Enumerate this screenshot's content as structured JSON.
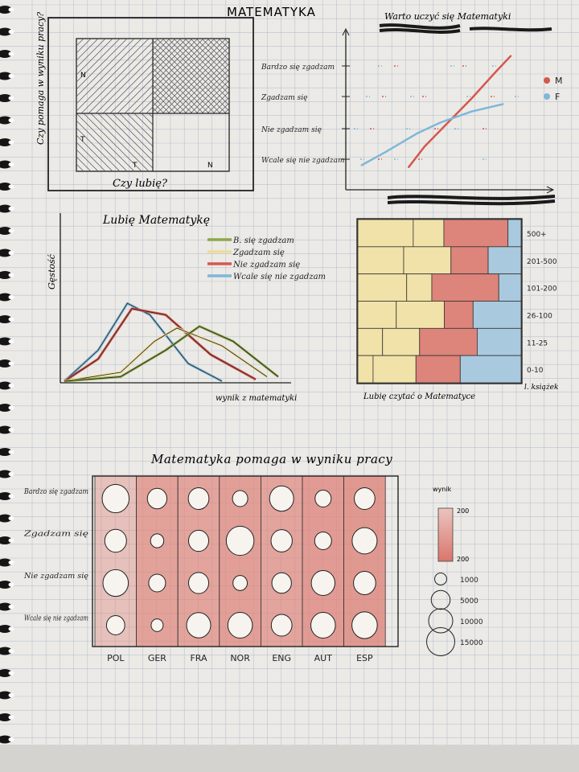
{
  "page": {
    "title": "MATEMATYKA"
  },
  "colors": {
    "paper": "#eceae6",
    "grid": "#b9c2cf",
    "ink": "#222222",
    "red": "#d4584e",
    "blue": "#7fb7d8",
    "yellow": "#eddc9a",
    "olive": "#8fa64a",
    "redfill": "#dd847b",
    "pinkfill": "#e8b9b4"
  },
  "chart_data": [
    {
      "id": "quadrant",
      "type": "heatmap",
      "ylabel": "Czy pomaga w wyniku pracy?",
      "xlabel": "Czy lubię?",
      "x_ticks": [
        "T",
        "N"
      ],
      "y_ticks": [
        "N",
        "T"
      ]
    },
    {
      "id": "worth",
      "type": "line",
      "title": "Warto uczyć się Matematyki",
      "y_categories": [
        "Bardzo się zgadzam",
        "Zgadzam się",
        "Nie zgadzam się",
        "Wcale się nie zgadzam"
      ],
      "series": [
        {
          "name": "M",
          "color": "#d4584e",
          "values": [
            [
              0.35,
              0.05
            ],
            [
              0.45,
              0.6
            ],
            [
              0.6,
              1.25
            ],
            [
              0.75,
              1.9
            ],
            [
              0.9,
              2.6
            ],
            [
              1.0,
              3.05
            ]
          ]
        },
        {
          "name": "F",
          "color": "#7fb7d8",
          "values": [
            [
              0.05,
              0.1
            ],
            [
              0.2,
              0.45
            ],
            [
              0.4,
              0.95
            ],
            [
              0.55,
              1.25
            ],
            [
              0.75,
              1.55
            ],
            [
              0.95,
              1.75
            ]
          ]
        }
      ]
    },
    {
      "id": "density",
      "type": "line",
      "title": "Lubię Matematykę",
      "ylabel": "Gęstość",
      "xlabel": "wynik z matematyki",
      "series": [
        {
          "name": "B. się zgadzam",
          "color": "#8fa64a",
          "values": [
            [
              0.0,
              0.0
            ],
            [
              0.25,
              0.05
            ],
            [
              0.45,
              0.35
            ],
            [
              0.6,
              0.62
            ],
            [
              0.75,
              0.45
            ],
            [
              0.95,
              0.05
            ]
          ]
        },
        {
          "name": "Zgadzam się",
          "color": "#eddc9a",
          "values": [
            [
              0.0,
              0.0
            ],
            [
              0.25,
              0.1
            ],
            [
              0.4,
              0.45
            ],
            [
              0.5,
              0.6
            ],
            [
              0.7,
              0.4
            ],
            [
              0.9,
              0.05
            ]
          ]
        },
        {
          "name": "Nie zgadzam się",
          "color": "#d4584e",
          "values": [
            [
              0.0,
              0.0
            ],
            [
              0.15,
              0.25
            ],
            [
              0.3,
              0.82
            ],
            [
              0.45,
              0.75
            ],
            [
              0.65,
              0.3
            ],
            [
              0.85,
              0.02
            ]
          ]
        },
        {
          "name": "Wcale się nie zgadzam",
          "color": "#7fb7d8",
          "values": [
            [
              0.0,
              0.0
            ],
            [
              0.15,
              0.35
            ],
            [
              0.28,
              0.88
            ],
            [
              0.38,
              0.75
            ],
            [
              0.55,
              0.2
            ],
            [
              0.7,
              0.0
            ]
          ]
        }
      ]
    },
    {
      "id": "books",
      "type": "bar",
      "title": "Lubię czytać o Matematyce",
      "ylabel_right": "l. książek",
      "categories": [
        "500+",
        "201-500",
        "101-200",
        "26-100",
        "11-25",
        "0-10"
      ],
      "segment_colors": [
        "#f1e2a9",
        "#f1e2a9",
        "#dd847b",
        "#a9c9df"
      ],
      "rows": [
        [
          0.38,
          0.21,
          0.44,
          0.09
        ],
        [
          0.32,
          0.33,
          0.26,
          0.23
        ],
        [
          0.35,
          0.18,
          0.48,
          0.16
        ],
        [
          0.28,
          0.35,
          0.21,
          0.35
        ],
        [
          0.18,
          0.27,
          0.42,
          0.32
        ],
        [
          0.11,
          0.31,
          0.32,
          0.44
        ]
      ]
    },
    {
      "id": "bubble",
      "type": "heatmap",
      "title": "Matematyka pomaga w wyniku pracy",
      "x_categories": [
        "POL",
        "GER",
        "FRA",
        "NOR",
        "ENG",
        "AUT",
        "ESP"
      ],
      "y_categories": [
        "Bardzo się zgadzam",
        "Zgadzam się",
        "Nie zgadzam się",
        "Wcale się nie zgadzam"
      ],
      "column_shade": [
        0.2,
        0.75,
        0.7,
        0.8,
        0.7,
        0.85,
        0.9
      ],
      "sizes": [
        [
          13500,
          5500,
          6500,
          2500,
          10000,
          3000,
          6500
        ],
        [
          7500,
          1500,
          6000,
          14500,
          7000,
          3500,
          11000
        ],
        [
          11500,
          3500,
          6000,
          2000,
          5500,
          9500,
          8000
        ],
        [
          4500,
          1000,
          10000,
          10500,
          6500,
          10500,
          11500
        ]
      ],
      "legend_title": "wynik",
      "legend_scale": [
        "200",
        "200"
      ],
      "legend_sizes": [
        {
          "label": "1000",
          "value": 1000
        },
        {
          "label": "5000",
          "value": 5000
        },
        {
          "label": "10000",
          "value": 10000
        },
        {
          "label": "15000",
          "value": 15000
        }
      ]
    }
  ]
}
